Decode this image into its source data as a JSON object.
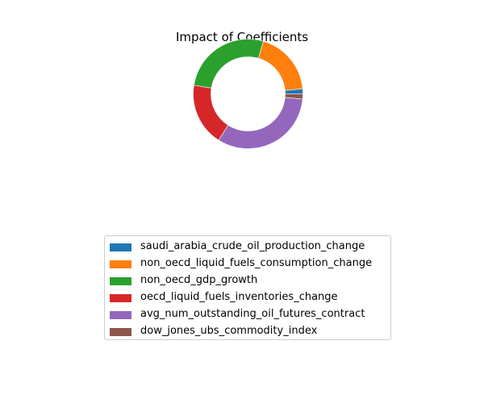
{
  "chart_data": {
    "type": "pie",
    "title": "Impact of Coefficients",
    "donut": true,
    "start_angle_deg": 0,
    "direction": "counterclockwise",
    "categories": [
      "saudi_arabia_crude_oil_production_change",
      "non_oecd_liquid_fuels_consumption_change",
      "non_oecd_gdp_growth",
      "oecd_liquid_fuels_inventories_change",
      "avg_num_outstanding_oil_futures_contract",
      "dow_jones_ubs_commodity_index"
    ],
    "values": [
      1.5,
      19.0,
      27.0,
      18.5,
      32.5,
      1.5
    ],
    "colors": [
      "#1f77b4",
      "#ff7f0e",
      "#2ca02c",
      "#d62728",
      "#9467bd",
      "#8c564b"
    ],
    "legend_position": "below"
  }
}
